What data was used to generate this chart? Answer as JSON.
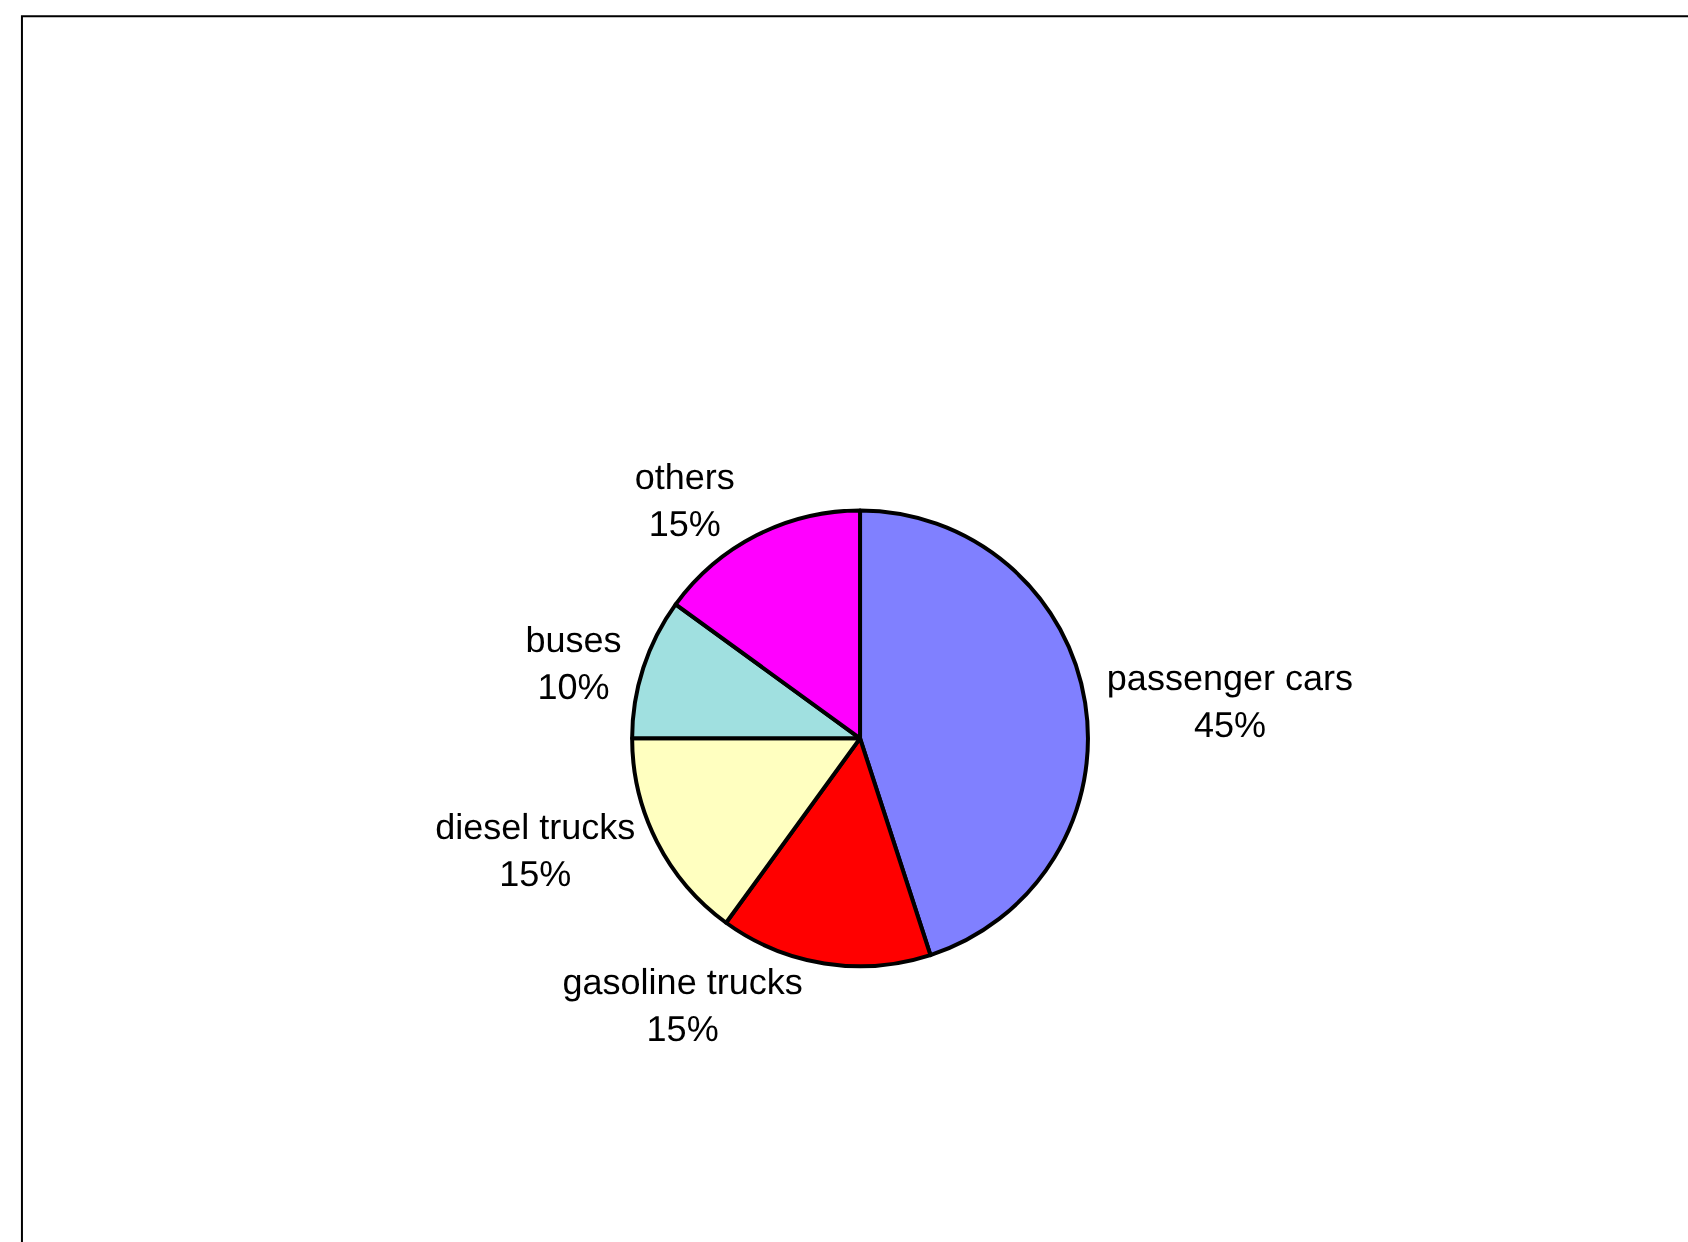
{
  "chart_data": {
    "type": "pie",
    "categories": [
      "passenger cars",
      "gasoline trucks",
      "diesel trucks",
      "buses",
      "others"
    ],
    "values": [
      45,
      15,
      15,
      10,
      15
    ],
    "value_labels": [
      "45%",
      "15%",
      "15%",
      "10%",
      "15%"
    ],
    "colors": [
      "#8080ff",
      "#ff0000",
      "#ffffc0",
      "#a0e0e0",
      "#ff00ff"
    ],
    "legend": false
  }
}
